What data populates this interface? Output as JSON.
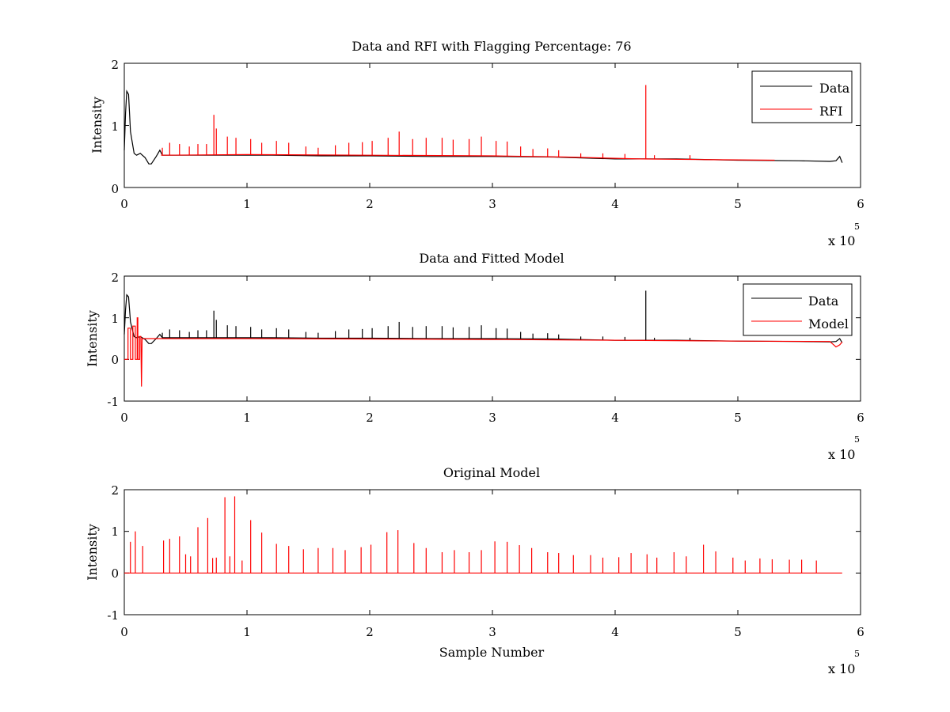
{
  "colors": {
    "data": "#000000",
    "rfi": "#ff0000",
    "model": "#ff0000",
    "axis": "#000000",
    "background": "#ffffff"
  },
  "chart_data": [
    {
      "type": "line",
      "title": "Data and RFI with Flagging Percentage: 76",
      "xlabel": "",
      "ylabel": "Intensity",
      "xlim": [
        0,
        600000
      ],
      "ylim": [
        0,
        2
      ],
      "xticks": [
        "0",
        "1",
        "2",
        "3",
        "4",
        "5",
        "6"
      ],
      "yticks": [
        "0",
        "1",
        "2"
      ],
      "x_multiplier": "x 10",
      "x_multiplier_exp": "5",
      "grid": false,
      "legend": {
        "placement": "top-right",
        "entries": [
          {
            "label": "Data",
            "color": "#000000"
          },
          {
            "label": "RFI",
            "color": "#ff0000"
          }
        ]
      },
      "series": [
        {
          "name": "Data",
          "color": "#000000",
          "x": [
            0,
            1000,
            2000,
            3500,
            5000,
            8000,
            10000,
            13000,
            17000,
            20000,
            22000,
            26000,
            29000,
            31000,
            40000,
            80000,
            120000,
            160000,
            200000,
            250000,
            300000,
            350000,
            400000,
            450000,
            500000,
            550000,
            575000,
            580000,
            583000,
            585000
          ],
          "y": [
            0.6,
            1.2,
            1.55,
            1.5,
            0.9,
            0.55,
            0.52,
            0.55,
            0.48,
            0.38,
            0.38,
            0.5,
            0.6,
            0.52,
            0.52,
            0.52,
            0.52,
            0.51,
            0.51,
            0.5,
            0.5,
            0.49,
            0.46,
            0.46,
            0.44,
            0.43,
            0.42,
            0.43,
            0.5,
            0.4
          ]
        },
        {
          "name": "RFI",
          "color": "#ff0000",
          "baseline": [
            [
              30000,
              0.52
            ],
            [
              100000,
              0.53
            ],
            [
              200000,
              0.52
            ],
            [
              300000,
              0.51
            ],
            [
              360000,
              0.49
            ],
            [
              420000,
              0.46
            ],
            [
              470000,
              0.45
            ],
            [
              530000,
              0.44
            ]
          ],
          "spikes_x": [
            31000,
            37000,
            45000,
            53000,
            60000,
            67000,
            73000,
            75000,
            84000,
            91000,
            103000,
            112000,
            124000,
            134000,
            148000,
            158000,
            172000,
            183000,
            194000,
            202000,
            215000,
            224000,
            235000,
            246000,
            259000,
            268000,
            281000,
            291000,
            303000,
            312000,
            323000,
            333000,
            345000,
            354000,
            372000,
            390000,
            408000,
            425000,
            432000,
            461000
          ],
          "spikes_y": [
            0.64,
            0.72,
            0.7,
            0.66,
            0.7,
            0.7,
            1.17,
            0.95,
            0.82,
            0.8,
            0.78,
            0.72,
            0.75,
            0.72,
            0.66,
            0.64,
            0.68,
            0.72,
            0.73,
            0.75,
            0.8,
            0.9,
            0.78,
            0.8,
            0.8,
            0.77,
            0.78,
            0.82,
            0.75,
            0.74,
            0.66,
            0.62,
            0.63,
            0.6,
            0.55,
            0.55,
            0.54,
            1.65,
            0.52,
            0.52
          ]
        }
      ]
    },
    {
      "type": "line",
      "title": "Data and Fitted Model",
      "xlabel": "",
      "ylabel": "Intensity",
      "xlim": [
        0,
        600000
      ],
      "ylim": [
        -1,
        2
      ],
      "xticks": [
        "0",
        "1",
        "2",
        "3",
        "4",
        "5",
        "6"
      ],
      "yticks": [
        "-1",
        "0",
        "1",
        "2"
      ],
      "x_multiplier": "x 10",
      "x_multiplier_exp": "5",
      "grid": false,
      "legend": {
        "placement": "top-right",
        "entries": [
          {
            "label": "Data",
            "color": "#000000"
          },
          {
            "label": "Model",
            "color": "#ff0000"
          }
        ]
      },
      "series": [
        {
          "name": "Data",
          "color": "#000000",
          "x": [
            0,
            1000,
            2000,
            3500,
            5000,
            8000,
            10000,
            13000,
            17000,
            20000,
            22000,
            26000,
            29000,
            31000,
            40000,
            80000,
            120000,
            160000,
            200000,
            250000,
            300000,
            350000,
            400000,
            450000,
            500000,
            550000,
            575000,
            580000,
            583000,
            585000
          ],
          "y": [
            0.6,
            1.2,
            1.55,
            1.5,
            0.9,
            0.55,
            0.52,
            0.55,
            0.48,
            0.38,
            0.38,
            0.5,
            0.6,
            0.52,
            0.52,
            0.52,
            0.52,
            0.51,
            0.51,
            0.5,
            0.5,
            0.49,
            0.46,
            0.46,
            0.44,
            0.43,
            0.42,
            0.43,
            0.5,
            0.4
          ],
          "spikes_x": [
            31000,
            37000,
            45000,
            53000,
            60000,
            67000,
            73000,
            75000,
            84000,
            91000,
            103000,
            112000,
            124000,
            134000,
            148000,
            158000,
            172000,
            183000,
            194000,
            202000,
            215000,
            224000,
            235000,
            246000,
            259000,
            268000,
            281000,
            291000,
            303000,
            312000,
            323000,
            333000,
            345000,
            354000,
            372000,
            390000,
            408000,
            425000,
            432000,
            461000
          ],
          "spikes_y": [
            0.64,
            0.72,
            0.7,
            0.66,
            0.7,
            0.7,
            1.17,
            0.95,
            0.82,
            0.8,
            0.78,
            0.72,
            0.75,
            0.72,
            0.66,
            0.64,
            0.68,
            0.72,
            0.73,
            0.75,
            0.8,
            0.9,
            0.78,
            0.8,
            0.8,
            0.77,
            0.78,
            0.82,
            0.75,
            0.74,
            0.66,
            0.62,
            0.63,
            0.6,
            0.55,
            0.55,
            0.54,
            1.65,
            0.52,
            0.52
          ]
        },
        {
          "name": "Model",
          "color": "#ff0000",
          "x": [
            0,
            3000,
            3000,
            5000,
            5000,
            7000,
            7000,
            9000,
            9000,
            10500,
            10500,
            11000,
            11000,
            12500,
            12500,
            13500,
            14000,
            14500,
            15000,
            20000,
            50000,
            100000,
            200000,
            300000,
            400000,
            500000,
            575000,
            580000,
            583000,
            585000
          ],
          "y": [
            0,
            0,
            0.75,
            0.75,
            0,
            0,
            0.8,
            0.8,
            0,
            0,
            1.0,
            1.0,
            0,
            0,
            0.55,
            0.55,
            -0.65,
            0.5,
            0.5,
            0.5,
            0.5,
            0.5,
            0.49,
            0.48,
            0.46,
            0.44,
            0.43,
            0.3,
            0.35,
            0.42
          ]
        }
      ]
    },
    {
      "type": "line",
      "title": "Original Model",
      "xlabel": "Sample Number",
      "ylabel": "Intensity",
      "xlim": [
        0,
        600000
      ],
      "ylim": [
        -1,
        2
      ],
      "xticks": [
        "0",
        "1",
        "2",
        "3",
        "4",
        "5",
        "6"
      ],
      "yticks": [
        "-1",
        "0",
        "1",
        "2"
      ],
      "x_multiplier": "x 10",
      "x_multiplier_exp": "5",
      "grid": false,
      "series": [
        {
          "color": "#ff0000",
          "x_range": [
            0,
            585000
          ],
          "baseline": 0,
          "spikes_x": [
            5000,
            9000,
            15000,
            32000,
            37000,
            45000,
            50000,
            54000,
            60000,
            68000,
            72000,
            75000,
            82000,
            86000,
            90000,
            96000,
            103000,
            112000,
            124000,
            134000,
            146000,
            158000,
            170000,
            180000,
            193000,
            201000,
            214000,
            223000,
            236000,
            246000,
            259000,
            269000,
            281000,
            291000,
            302000,
            312000,
            322000,
            332000,
            345000,
            354000,
            366000,
            380000,
            390000,
            403000,
            413000,
            426000,
            434000,
            448000,
            458000,
            472000,
            482000,
            496000,
            506000,
            518000,
            528000,
            542000,
            552000,
            564000
          ],
          "spikes_y": [
            0.75,
            1.0,
            0.65,
            0.78,
            0.82,
            0.88,
            0.45,
            0.4,
            1.1,
            1.32,
            0.36,
            0.37,
            1.82,
            0.4,
            1.84,
            0.3,
            1.27,
            0.97,
            0.7,
            0.65,
            0.57,
            0.6,
            0.6,
            0.55,
            0.62,
            0.68,
            0.98,
            1.03,
            0.72,
            0.6,
            0.5,
            0.55,
            0.5,
            0.55,
            0.76,
            0.75,
            0.67,
            0.6,
            0.5,
            0.48,
            0.43,
            0.43,
            0.37,
            0.38,
            0.48,
            0.45,
            0.37,
            0.5,
            0.4,
            0.68,
            0.52,
            0.37,
            0.3,
            0.35,
            0.33,
            0.32,
            0.32,
            0.3
          ]
        }
      ]
    }
  ]
}
